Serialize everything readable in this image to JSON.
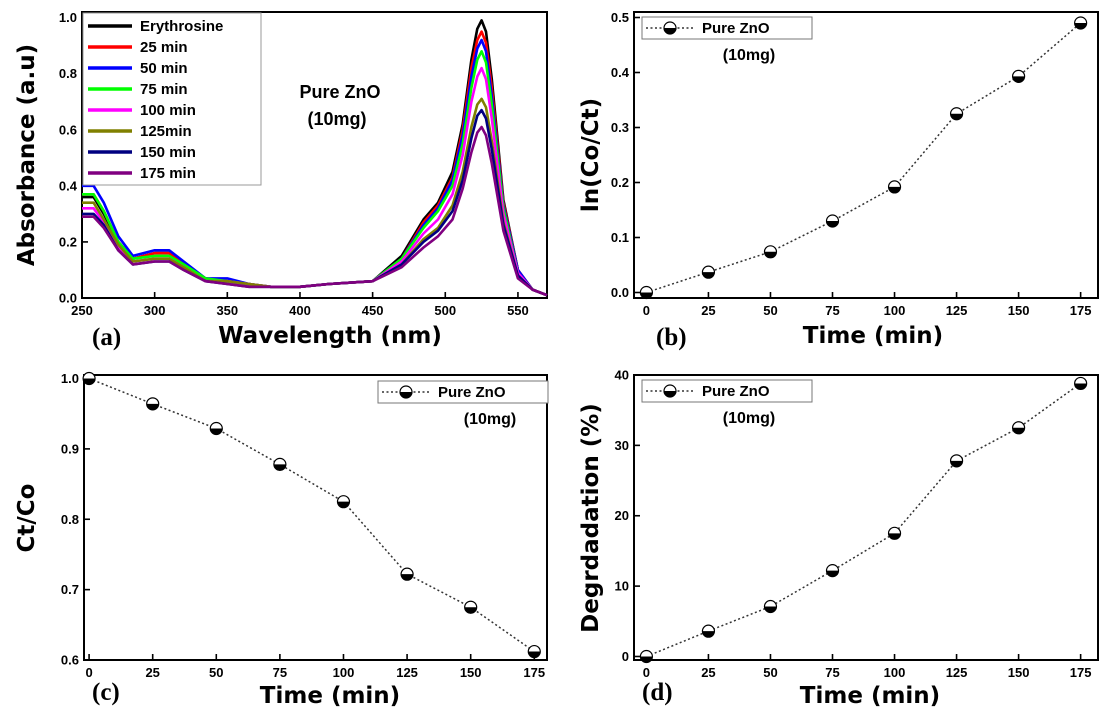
{
  "chart_data": [
    {
      "panel": "(a)",
      "type": "line",
      "xlabel": "Wavelength (nm)",
      "ylabel": "Absorbance (a.u)",
      "xlim": [
        250,
        570
      ],
      "ylim": [
        0,
        1.02
      ],
      "xticks": [
        250,
        300,
        350,
        400,
        450,
        500,
        550
      ],
      "yticks": [
        0.0,
        0.2,
        0.4,
        0.6,
        0.8,
        1.0
      ],
      "annotation": [
        "Pure ZnO",
        "(10mg)"
      ],
      "legend": "top-left",
      "x": [
        250,
        258,
        265,
        275,
        285,
        300,
        310,
        320,
        335,
        350,
        365,
        380,
        400,
        420,
        450,
        470,
        485,
        495,
        505,
        512,
        518,
        522,
        525,
        528,
        532,
        540,
        550,
        560,
        570
      ],
      "series": [
        {
          "name": "Erythrosine",
          "color": "#000000",
          "values": [
            0.36,
            0.36,
            0.3,
            0.2,
            0.14,
            0.16,
            0.16,
            0.12,
            0.07,
            0.06,
            0.05,
            0.04,
            0.04,
            0.05,
            0.06,
            0.15,
            0.28,
            0.34,
            0.45,
            0.62,
            0.85,
            0.96,
            0.99,
            0.95,
            0.78,
            0.35,
            0.1,
            0.03,
            0.01
          ]
        },
        {
          "name": "25 min",
          "color": "#ff0000",
          "values": [
            0.37,
            0.37,
            0.31,
            0.2,
            0.14,
            0.16,
            0.16,
            0.12,
            0.07,
            0.06,
            0.05,
            0.04,
            0.04,
            0.05,
            0.06,
            0.14,
            0.27,
            0.33,
            0.43,
            0.6,
            0.82,
            0.92,
            0.95,
            0.91,
            0.75,
            0.34,
            0.1,
            0.03,
            0.01
          ]
        },
        {
          "name": "50 min",
          "color": "#0000ff",
          "values": [
            0.4,
            0.4,
            0.34,
            0.22,
            0.15,
            0.17,
            0.17,
            0.13,
            0.07,
            0.07,
            0.05,
            0.04,
            0.04,
            0.05,
            0.06,
            0.14,
            0.26,
            0.32,
            0.42,
            0.58,
            0.79,
            0.89,
            0.92,
            0.88,
            0.72,
            0.33,
            0.1,
            0.03,
            0.01
          ]
        },
        {
          "name": "75 min",
          "color": "#00ff00",
          "values": [
            0.37,
            0.37,
            0.31,
            0.2,
            0.14,
            0.15,
            0.15,
            0.12,
            0.07,
            0.06,
            0.05,
            0.04,
            0.04,
            0.05,
            0.06,
            0.14,
            0.25,
            0.31,
            0.4,
            0.55,
            0.75,
            0.85,
            0.88,
            0.84,
            0.69,
            0.32,
            0.09,
            0.03,
            0.01
          ]
        },
        {
          "name": "100 min",
          "color": "#ff00ff",
          "values": [
            0.32,
            0.32,
            0.27,
            0.18,
            0.13,
            0.14,
            0.14,
            0.11,
            0.06,
            0.06,
            0.05,
            0.04,
            0.04,
            0.05,
            0.06,
            0.13,
            0.23,
            0.28,
            0.37,
            0.51,
            0.7,
            0.79,
            0.82,
            0.78,
            0.64,
            0.3,
            0.09,
            0.03,
            0.01
          ]
        },
        {
          "name": "125min",
          "color": "#808000",
          "values": [
            0.34,
            0.34,
            0.28,
            0.19,
            0.13,
            0.14,
            0.14,
            0.11,
            0.06,
            0.06,
            0.05,
            0.04,
            0.04,
            0.05,
            0.06,
            0.12,
            0.21,
            0.25,
            0.33,
            0.45,
            0.61,
            0.69,
            0.71,
            0.68,
            0.56,
            0.27,
            0.08,
            0.03,
            0.01
          ]
        },
        {
          "name": "150 min",
          "color": "#000080",
          "values": [
            0.3,
            0.3,
            0.26,
            0.17,
            0.12,
            0.13,
            0.13,
            0.1,
            0.06,
            0.05,
            0.04,
            0.04,
            0.04,
            0.05,
            0.06,
            0.12,
            0.2,
            0.24,
            0.31,
            0.42,
            0.57,
            0.65,
            0.67,
            0.64,
            0.53,
            0.26,
            0.08,
            0.03,
            0.01
          ]
        },
        {
          "name": "175 min",
          "color": "#800080",
          "values": [
            0.29,
            0.29,
            0.25,
            0.17,
            0.12,
            0.13,
            0.13,
            0.1,
            0.06,
            0.05,
            0.04,
            0.04,
            0.04,
            0.05,
            0.06,
            0.11,
            0.18,
            0.22,
            0.28,
            0.39,
            0.52,
            0.59,
            0.61,
            0.58,
            0.48,
            0.24,
            0.07,
            0.03,
            0.01
          ]
        }
      ]
    },
    {
      "panel": "(b)",
      "type": "line",
      "xlabel": "Time (min)",
      "ylabel": "ln(Co/Ct)",
      "xlim": [
        -5,
        182
      ],
      "ylim": [
        -0.01,
        0.51
      ],
      "xticks": [
        0,
        25,
        50,
        75,
        100,
        125,
        150,
        175
      ],
      "yticks": [
        0.0,
        0.1,
        0.2,
        0.3,
        0.4,
        0.5
      ],
      "legend": "top-left",
      "annotation": [
        "(10mg)"
      ],
      "series": [
        {
          "name": "Pure ZnO",
          "x": [
            0,
            25,
            50,
            75,
            100,
            125,
            150,
            175
          ],
          "values": [
            0.0,
            0.037,
            0.074,
            0.13,
            0.192,
            0.325,
            0.393,
            0.49
          ]
        }
      ]
    },
    {
      "panel": "(c)",
      "type": "line",
      "xlabel": "Time (min)",
      "ylabel": "Ct/Co",
      "xlim": [
        -2,
        180
      ],
      "ylim": [
        0.6,
        1.005
      ],
      "xticks": [
        0,
        25,
        50,
        75,
        100,
        125,
        150,
        175
      ],
      "yticks": [
        0.6,
        0.7,
        0.8,
        0.9,
        1.0
      ],
      "legend": "top-right",
      "annotation": [
        "(10mg)"
      ],
      "series": [
        {
          "name": "Pure ZnO",
          "x": [
            0,
            25,
            50,
            75,
            100,
            125,
            150,
            175
          ],
          "values": [
            1.0,
            0.964,
            0.929,
            0.878,
            0.825,
            0.722,
            0.675,
            0.612
          ]
        }
      ]
    },
    {
      "panel": "(d)",
      "type": "line",
      "xlabel": "Time (min)",
      "ylabel": "Degrdadation (%)",
      "xlim": [
        -5,
        182
      ],
      "ylim": [
        -0.5,
        40
      ],
      "xticks": [
        0,
        25,
        50,
        75,
        100,
        125,
        150,
        175
      ],
      "yticks": [
        0,
        10,
        20,
        30,
        40
      ],
      "legend": "top-left",
      "annotation": [
        "(10mg)"
      ],
      "series": [
        {
          "name": "Pure ZnO",
          "x": [
            0,
            25,
            50,
            75,
            100,
            125,
            150,
            175
          ],
          "values": [
            0,
            3.6,
            7.1,
            12.2,
            17.5,
            27.8,
            32.5,
            38.8
          ]
        }
      ]
    }
  ]
}
